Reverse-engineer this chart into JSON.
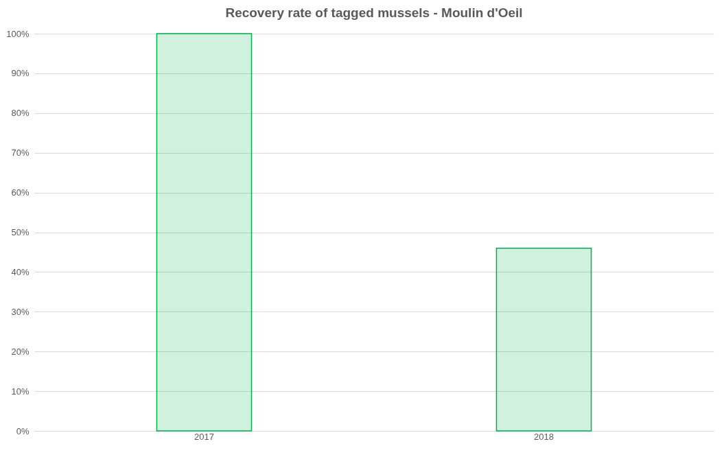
{
  "chart_data": {
    "type": "bar",
    "title": "Recovery rate of tagged mussels - Moulin d'Oeil",
    "categories": [
      "2017",
      "2018"
    ],
    "values": [
      100,
      46
    ],
    "color": "#00b050",
    "ylim": [
      0,
      100
    ],
    "yticks": [
      {
        "value": 0,
        "label": "0%"
      },
      {
        "value": 10,
        "label": "10%"
      },
      {
        "value": 20,
        "label": "20%"
      },
      {
        "value": 30,
        "label": "30%"
      },
      {
        "value": 40,
        "label": "40%"
      },
      {
        "value": 50,
        "label": "50%"
      },
      {
        "value": 60,
        "label": "60%"
      },
      {
        "value": 70,
        "label": "70%"
      },
      {
        "value": 80,
        "label": "80%"
      },
      {
        "value": 90,
        "label": "90%"
      },
      {
        "value": 100,
        "label": "100%"
      }
    ],
    "grid": "y"
  }
}
